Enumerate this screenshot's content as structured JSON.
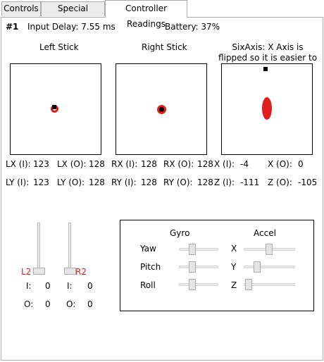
{
  "tabs": [
    {
      "label": "Controls"
    },
    {
      "label": "Special Actions"
    },
    {
      "label": "Controller Readings"
    }
  ],
  "header": {
    "controller_id": "#1",
    "input_delay": "Input Delay: 7.55 ms",
    "battery": "Battery: 37%"
  },
  "sticks": {
    "left_title": "Left Stick",
    "right_title": "Right Stick",
    "sixaxis_title": "SixAxis: X Axis is flipped so it is easier to read"
  },
  "readings": {
    "lx_i_label": "LX (I):",
    "lx_i": "123",
    "lx_o_label": "LX (O):",
    "lx_o": "128",
    "ly_i_label": "LY (I):",
    "ly_i": "123",
    "ly_o_label": "LY (O):",
    "ly_o": "128",
    "rx_i_label": "RX (I):",
    "rx_i": "128",
    "rx_o_label": "RX (O):",
    "rx_o": "128",
    "ry_i_label": "RY (I):",
    "ry_i": "128",
    "ry_o_label": "RY (O):",
    "ry_o": "128",
    "x_i_label": "X (I):",
    "x_i": "-4",
    "x_o_label": "X (O):",
    "x_o": "0",
    "z_i_label": "Z (I):",
    "z_i": "-111",
    "z_o_label": "Z (O):",
    "z_o": "-105"
  },
  "triggers": {
    "l2_label": "L2",
    "r2_label": "R2",
    "l2_i_label": "I:",
    "l2_i": "0",
    "l2_o_label": "O:",
    "l2_o": "0",
    "r2_i_label": "I:",
    "r2_i": "0",
    "r2_o_label": "O:",
    "r2_o": "0",
    "l2_level": 0,
    "r2_level": 0
  },
  "motion": {
    "gyro_title": "Gyro",
    "accel_title": "Accel",
    "gyro_rows": [
      {
        "label": "Yaw"
      },
      {
        "label": "Pitch"
      },
      {
        "label": "Roll"
      }
    ],
    "accel_rows": [
      {
        "label": "X"
      },
      {
        "label": "Y"
      },
      {
        "label": "Z"
      }
    ]
  },
  "colors": {
    "accent_red": "#e01e1e",
    "tab_border": "#acacac"
  }
}
